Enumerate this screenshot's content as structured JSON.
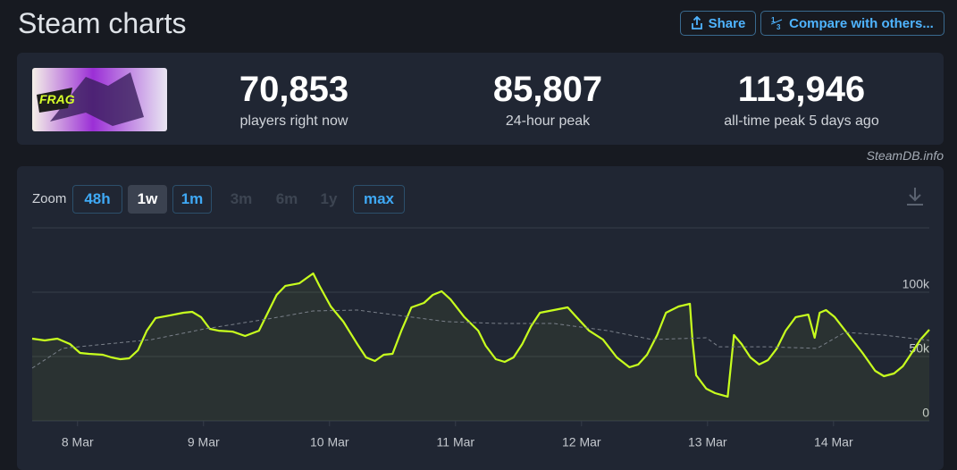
{
  "header": {
    "title": "Steam charts",
    "buttons": [
      "Share",
      "Compare with others..."
    ]
  },
  "stats": [
    {
      "value": "70,853",
      "label": "players right now"
    },
    {
      "value": "85,807",
      "label": "24-hour peak"
    },
    {
      "value": "113,946",
      "label": "all-time peak 5 days ago"
    }
  ],
  "credit": "SteamDB.info",
  "zoom": {
    "label": "Zoom",
    "options": [
      {
        "label": "48h",
        "state": "link"
      },
      {
        "label": "1w",
        "state": "active"
      },
      {
        "label": "1m",
        "state": "link"
      },
      {
        "label": "3m",
        "state": "disabled"
      },
      {
        "label": "6m",
        "state": "disabled"
      },
      {
        "label": "1y",
        "state": "disabled"
      },
      {
        "label": "max",
        "state": "link"
      }
    ]
  },
  "chart_data": {
    "type": "line",
    "xlim": [
      -0.36,
      6.76
    ],
    "xticks": [
      {
        "value": 0,
        "label": "8 Mar"
      },
      {
        "value": 1,
        "label": "9 Mar"
      },
      {
        "value": 2,
        "label": "10 Mar"
      },
      {
        "value": 3,
        "label": "11 Mar"
      },
      {
        "value": 4,
        "label": "12 Mar"
      },
      {
        "value": 5,
        "label": "13 Mar"
      },
      {
        "value": 6,
        "label": "14 Mar"
      }
    ],
    "ylim": [
      0,
      150000
    ],
    "yticks": [
      0,
      {
        "value": 50000,
        "label": "50k"
      },
      {
        "value": 100000,
        "label": "100k"
      },
      150000
    ],
    "grid": true,
    "series": [
      {
        "color": "#c8ff1e",
        "style": "solid",
        "fill": true,
        "x": [
          -0.36,
          -0.26,
          -0.16,
          -0.06,
          0.02,
          0.09,
          0.2,
          0.27,
          0.34,
          0.41,
          0.48,
          0.55,
          0.62,
          0.73,
          0.84,
          0.91,
          0.98,
          1.05,
          1.12,
          1.23,
          1.33,
          1.44,
          1.51,
          1.58,
          1.65,
          1.76,
          1.83,
          1.87,
          1.92,
          2.01,
          2.11,
          2.22,
          2.29,
          2.36,
          2.43,
          2.5,
          2.57,
          2.65,
          2.75,
          2.82,
          2.89,
          2.96,
          3.07,
          3.18,
          3.24,
          3.32,
          3.39,
          3.46,
          3.53,
          3.6,
          3.67,
          3.78,
          3.89,
          3.96,
          4.06,
          4.17,
          4.28,
          4.38,
          4.45,
          4.52,
          4.6,
          4.67,
          4.77,
          4.86,
          4.88,
          4.91,
          4.99,
          5.06,
          5.16,
          5.21,
          5.27,
          5.34,
          5.41,
          5.48,
          5.55,
          5.62,
          5.7,
          5.8,
          5.85,
          5.89,
          5.94,
          6.01,
          6.12,
          6.23,
          6.33,
          6.4,
          6.48,
          6.55,
          6.62,
          6.69,
          6.76
        ],
        "values": [
          63900,
          62500,
          63900,
          59700,
          52800,
          52100,
          51400,
          49300,
          47900,
          48600,
          54900,
          70100,
          79900,
          81900,
          84000,
          84700,
          80600,
          71500,
          70100,
          69400,
          66000,
          70100,
          84000,
          97900,
          104900,
          106900,
          111800,
          114600,
          104900,
          88900,
          77100,
          59700,
          49300,
          46500,
          51400,
          52100,
          70100,
          88200,
          91700,
          97900,
          100700,
          94400,
          80600,
          70100,
          58300,
          47900,
          45800,
          49300,
          59700,
          73600,
          84000,
          86100,
          88200,
          80600,
          70100,
          63200,
          49300,
          41700,
          43800,
          51400,
          66700,
          84000,
          88900,
          91000,
          63200,
          35400,
          25000,
          21500,
          18800,
          66700,
          59700,
          49300,
          43800,
          47200,
          56300,
          70100,
          80600,
          82600,
          64600,
          84000,
          86100,
          80600,
          66700,
          52800,
          38900,
          34700,
          36800,
          42400,
          52800,
          63200,
          70800
        ]
      },
      {
        "color": "#7a808a",
        "style": "dashed",
        "fill": false,
        "x": [
          -0.36,
          -0.12,
          0.23,
          0.59,
          1.01,
          1.51,
          1.87,
          2.22,
          2.5,
          2.93,
          3.35,
          3.78,
          4.21,
          4.56,
          4.99,
          5.09,
          5.48,
          5.87,
          6.09,
          6.4,
          6.76
        ],
        "values": [
          41000,
          56300,
          59700,
          63200,
          71500,
          79200,
          85400,
          86100,
          82600,
          77100,
          75700,
          75700,
          70100,
          63200,
          64600,
          57600,
          57600,
          56300,
          68800,
          66700,
          62500
        ]
      }
    ]
  }
}
